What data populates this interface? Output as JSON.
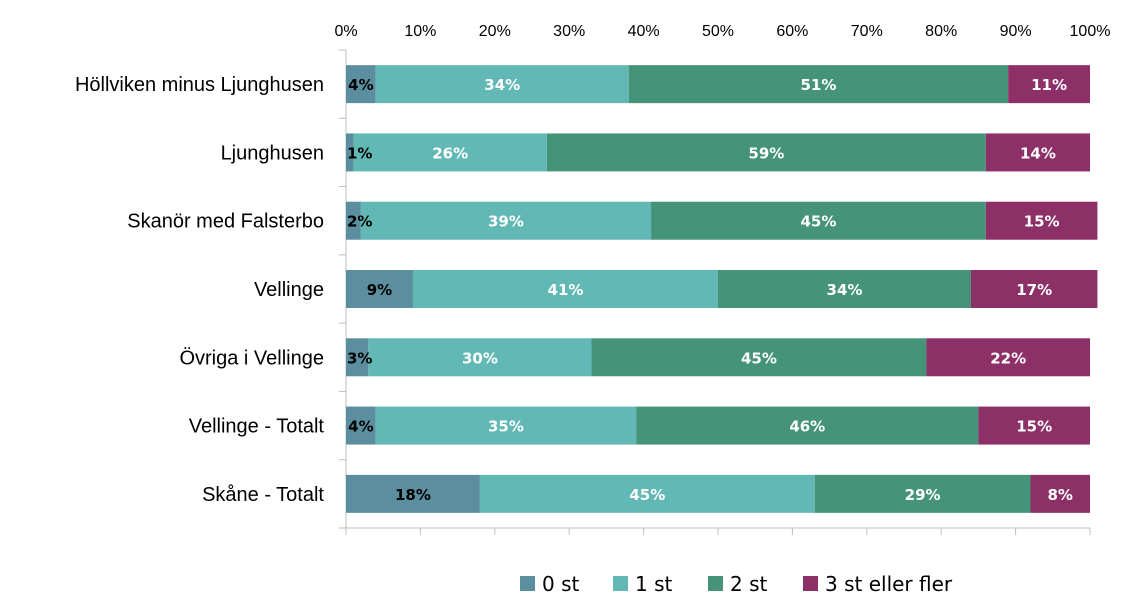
{
  "chart_data": {
    "type": "bar",
    "orientation": "horizontal",
    "stacked": "percent",
    "categories": [
      "Höllviken minus Ljunghusen",
      "Ljunghusen",
      "Skanör med Falsterbo",
      "Vellinge",
      "Övriga i Vellinge",
      "Vellinge - Totalt",
      "Skåne - Totalt"
    ],
    "series": [
      {
        "name": "0 st",
        "color": "#5b8fa0",
        "label_color": "#000000",
        "values": [
          4,
          1,
          2,
          9,
          3,
          4,
          18
        ],
        "labels": [
          "4%",
          "1%",
          "2%",
          "9%",
          "3%",
          "4%",
          "18%"
        ]
      },
      {
        "name": "1 st",
        "color": "#62b8b5",
        "label_color": "#ffffff",
        "values": [
          34,
          26,
          39,
          41,
          30,
          35,
          45
        ],
        "labels": [
          "34%",
          "26%",
          "39%",
          "41%",
          "30%",
          "35%",
          "45%"
        ]
      },
      {
        "name": "2 st",
        "color": "#45947a",
        "label_color": "#ffffff",
        "values": [
          51,
          59,
          45,
          34,
          45,
          46,
          29
        ],
        "labels": [
          "51%",
          "59%",
          "45%",
          "34%",
          "45%",
          "46%",
          "29%"
        ]
      },
      {
        "name": "3 st eller fler",
        "color": "#8e3068",
        "label_color": "#ffffff",
        "values": [
          11,
          14,
          15,
          17,
          22,
          15,
          8
        ],
        "labels": [
          "11%",
          "14%",
          "15%",
          "17%",
          "22%",
          "15%",
          "8%"
        ]
      }
    ],
    "x_ticks": [
      "0%",
      "10%",
      "20%",
      "30%",
      "40%",
      "50%",
      "60%",
      "70%",
      "80%",
      "90%",
      "100%"
    ],
    "xlim": [
      0,
      100
    ],
    "x_axis_position": "top",
    "grid": false,
    "legend_position": "bottom"
  }
}
